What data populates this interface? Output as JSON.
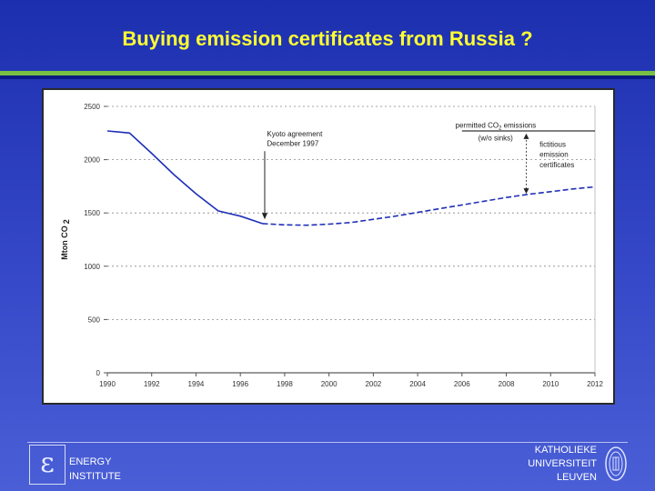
{
  "slide": {
    "title": "Buying emission certificates from Russia ?"
  },
  "footer": {
    "institute_line1": "ENERGY",
    "institute_line2": "INSTITUTE",
    "logo_glyph": "ε",
    "university_line1": "KATHOLIEKE",
    "university_line2": "UNIVERSITEIT",
    "university_line3": "LEUVEN"
  },
  "chart_data": {
    "type": "line",
    "title": "",
    "xlabel": "",
    "ylabel_main": "Mton CO",
    "ylabel_sub": "2",
    "xlim": [
      1990,
      2012
    ],
    "ylim": [
      0,
      2500
    ],
    "x_ticks": [
      "1990",
      "1992",
      "1994",
      "1996",
      "1998",
      "2000",
      "2002",
      "2004",
      "2006",
      "2008",
      "2010",
      "2012"
    ],
    "y_ticks": [
      "0",
      "500",
      "1000",
      "1500",
      "2000",
      "2500"
    ],
    "grid": "dashed horizontal",
    "series": [
      {
        "style": "solid",
        "color": "#1f2fb8",
        "points": [
          [
            1990,
            2270
          ],
          [
            1991,
            2250
          ],
          [
            1992,
            2060
          ],
          [
            1993,
            1860
          ],
          [
            1994,
            1680
          ],
          [
            1995,
            1520
          ],
          [
            1996,
            1470
          ],
          [
            1997,
            1400
          ]
        ]
      },
      {
        "style": "dashed",
        "color": "#1f2fb8",
        "points": [
          [
            1997,
            1400
          ],
          [
            1998,
            1388
          ],
          [
            1999,
            1385
          ],
          [
            2000,
            1395
          ],
          [
            2001,
            1410
          ],
          [
            2002,
            1440
          ],
          [
            2003,
            1470
          ],
          [
            2004,
            1505
          ],
          [
            2005,
            1540
          ],
          [
            2006,
            1575
          ],
          [
            2007,
            1610
          ],
          [
            2008,
            1645
          ],
          [
            2009,
            1675
          ],
          [
            2010,
            1700
          ],
          [
            2011,
            1725
          ],
          [
            2012,
            1745
          ]
        ]
      },
      {
        "style": "solid",
        "color": "#000000",
        "points": [
          [
            2006,
            2270
          ],
          [
            2012,
            2270
          ]
        ]
      }
    ],
    "annotations": {
      "kyoto_line1": "Kyoto agreement",
      "kyoto_line2": "December 1997",
      "permitted_main": "permitted CO",
      "permitted_sub": "2",
      "permitted_tail": " emissions",
      "permitted_note": "(w/o sinks)",
      "fictitious_line1": "fictitious",
      "fictitious_line2": "emission",
      "fictitious_line3": "certificates"
    }
  }
}
